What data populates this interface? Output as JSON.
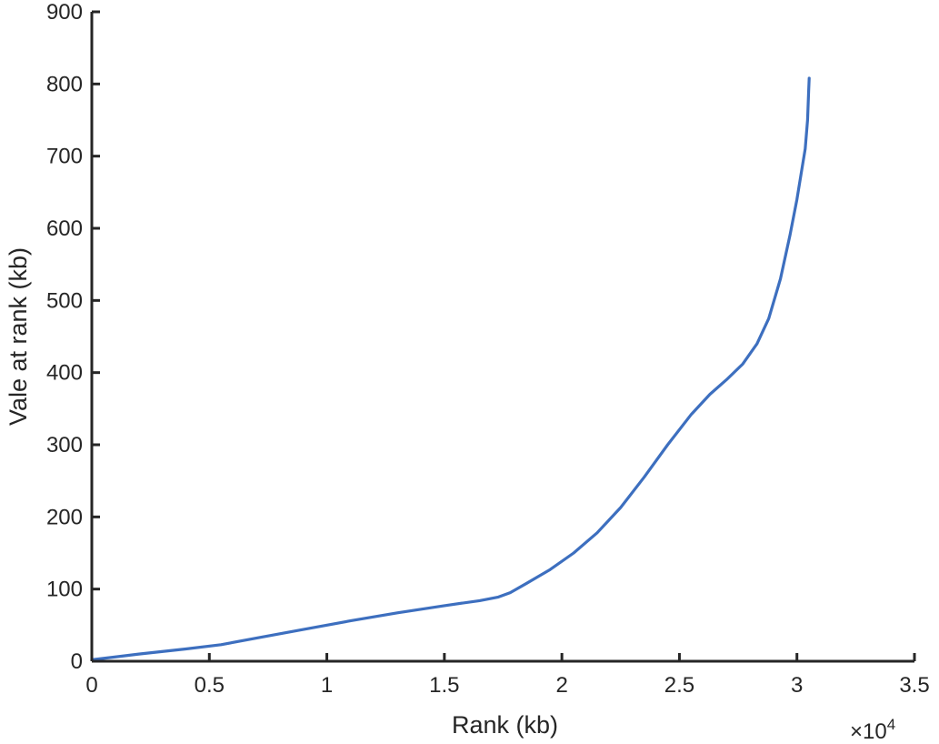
{
  "chart_data": {
    "type": "line",
    "title": "",
    "xlabel": "Rank (kb)",
    "ylabel": "Vale at rank (kb)",
    "x_exponent_base": "×10",
    "x_exponent_power": "4",
    "xlim": [
      0,
      35000
    ],
    "ylim": [
      0,
      900
    ],
    "xticks": [
      0,
      5000,
      10000,
      15000,
      20000,
      25000,
      30000,
      35000
    ],
    "xtick_labels": [
      "0",
      "0.5",
      "1",
      "1.5",
      "2",
      "2.5",
      "3",
      "3.5"
    ],
    "yticks": [
      0,
      100,
      200,
      300,
      400,
      500,
      600,
      700,
      800,
      900
    ],
    "ytick_labels": [
      "0",
      "100",
      "200",
      "300",
      "400",
      "500",
      "600",
      "700",
      "800",
      "900"
    ],
    "grid": false,
    "series": [
      {
        "color": "#3d6fbf",
        "x": [
          0,
          2000,
          4000,
          5500,
          7000,
          9000,
          11000,
          13000,
          15000,
          16500,
          17300,
          17800,
          18500,
          19500,
          20500,
          21500,
          22500,
          23500,
          24500,
          25500,
          26300,
          27000,
          27700,
          28300,
          28800,
          29300,
          29700,
          30000,
          30200,
          30350,
          30450,
          30500,
          30520
        ],
        "y": [
          2,
          10,
          17,
          23,
          32,
          44,
          56,
          67,
          77,
          84,
          89,
          95,
          108,
          127,
          150,
          178,
          213,
          255,
          300,
          342,
          370,
          390,
          412,
          440,
          475,
          530,
          590,
          640,
          680,
          710,
          750,
          790,
          808
        ]
      }
    ]
  }
}
